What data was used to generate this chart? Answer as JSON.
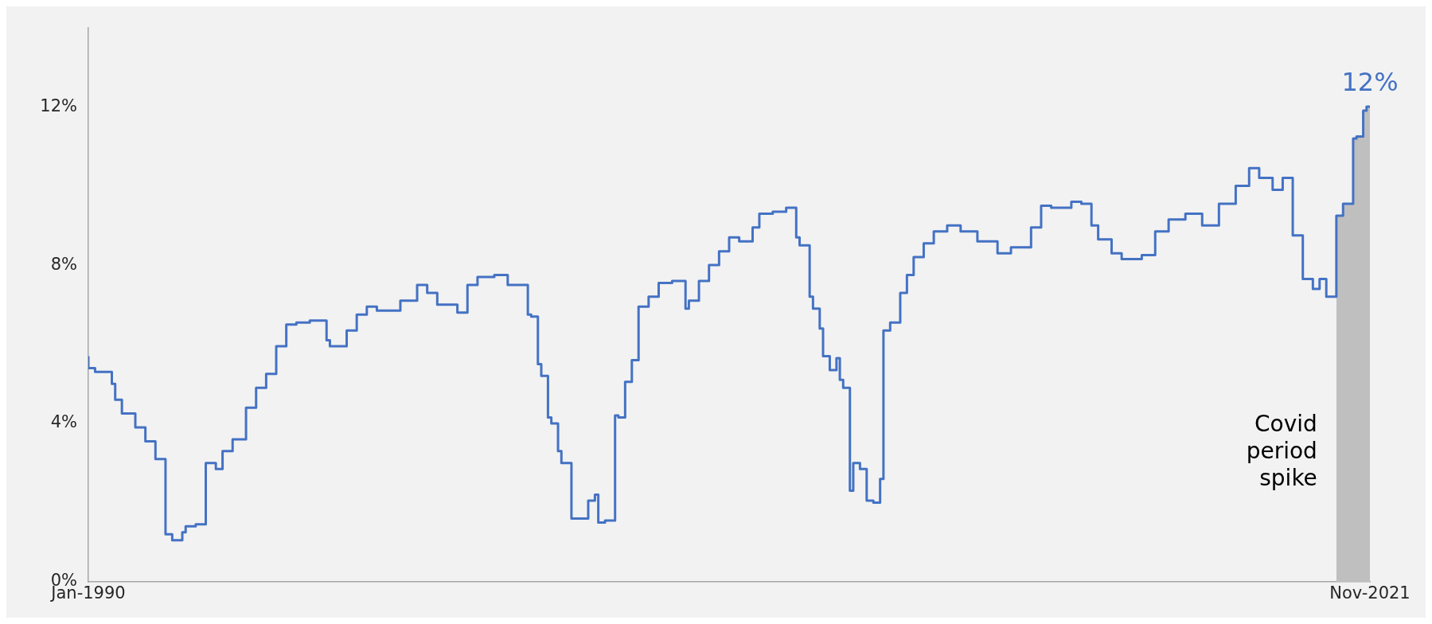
{
  "chart_data": {
    "type": "step",
    "marker": "none",
    "grid": false,
    "xlim": [
      "1990-01",
      "2021-11"
    ],
    "xticks": [
      {
        "value": "1990-01",
        "label": "Jan-1990"
      },
      {
        "value": "2021-11",
        "label": "Nov-2021"
      }
    ],
    "ylim": [
      0,
      14
    ],
    "yticks": [
      {
        "value": 0,
        "label": "0%"
      },
      {
        "value": 4,
        "label": "4%"
      },
      {
        "value": 8,
        "label": "8%"
      },
      {
        "value": 12,
        "label": "12%"
      }
    ],
    "series": [
      {
        "color": "#4472c4",
        "x": [
          "1990-01",
          "1990-03",
          "1990-05",
          "1990-08",
          "1990-09",
          "1990-11",
          "1991-03",
          "1991-06",
          "1991-09",
          "1991-12",
          "1992-02",
          "1992-05",
          "1992-06",
          "1992-09",
          "1992-12",
          "1993-03",
          "1993-05",
          "1993-08",
          "1993-12",
          "1994-03",
          "1994-06",
          "1994-09",
          "1994-12",
          "1995-03",
          "1995-07",
          "1995-12",
          "1996-01",
          "1996-06",
          "1996-09",
          "1996-12",
          "1997-03",
          "1997-10",
          "1998-03",
          "1998-06",
          "1998-09",
          "1999-03",
          "1999-06",
          "1999-09",
          "2000-02",
          "2000-06",
          "2000-12",
          "2001-01",
          "2001-03",
          "2001-04",
          "2001-06",
          "2001-07",
          "2001-09",
          "2001-10",
          "2002-01",
          "2002-03",
          "2002-06",
          "2002-08",
          "2002-09",
          "2002-11",
          "2003-02",
          "2003-03",
          "2003-05",
          "2003-07",
          "2003-09",
          "2003-12",
          "2004-03",
          "2004-07",
          "2004-11",
          "2004-12",
          "2005-03",
          "2005-06",
          "2005-09",
          "2005-12",
          "2006-03",
          "2006-07",
          "2006-09",
          "2007-01",
          "2007-05",
          "2007-08",
          "2007-09",
          "2007-12",
          "2008-01",
          "2008-03",
          "2008-04",
          "2008-06",
          "2008-08",
          "2008-09",
          "2008-10",
          "2008-12",
          "2009-01",
          "2009-03",
          "2009-05",
          "2009-07",
          "2009-09",
          "2009-10",
          "2009-12",
          "2010-03",
          "2010-05",
          "2010-07",
          "2010-10",
          "2011-01",
          "2011-05",
          "2011-09",
          "2012-02",
          "2012-08",
          "2012-12",
          "2013-06",
          "2013-09",
          "2013-12",
          "2014-06",
          "2014-09",
          "2014-12",
          "2015-02",
          "2015-06",
          "2015-09",
          "2016-03",
          "2016-07",
          "2016-11",
          "2017-04",
          "2017-09",
          "2018-02",
          "2018-07",
          "2018-11",
          "2019-02",
          "2019-06",
          "2019-09",
          "2019-12",
          "2020-03",
          "2020-06",
          "2020-08",
          "2020-10",
          "2021-01",
          "2021-03",
          "2021-06",
          "2021-07",
          "2021-09",
          "2021-10",
          "2021-11"
        ],
        "values": [
          5.7,
          5.4,
          5.3,
          5.3,
          5.0,
          4.6,
          4.25,
          3.9,
          3.55,
          3.1,
          1.2,
          1.05,
          1.25,
          1.4,
          1.45,
          3.0,
          2.85,
          3.3,
          3.6,
          4.4,
          4.9,
          5.25,
          5.95,
          6.5,
          6.55,
          6.6,
          6.1,
          5.95,
          6.35,
          6.75,
          6.95,
          6.85,
          7.1,
          7.5,
          7.3,
          7.0,
          6.8,
          7.5,
          7.7,
          7.75,
          7.5,
          6.75,
          6.7,
          5.5,
          5.2,
          4.15,
          4.0,
          3.3,
          3.0,
          1.6,
          1.6,
          2.05,
          2.2,
          1.5,
          1.55,
          4.2,
          4.15,
          5.05,
          5.6,
          6.95,
          7.2,
          7.55,
          7.6,
          6.9,
          7.1,
          7.6,
          8.0,
          8.35,
          8.7,
          8.6,
          8.95,
          9.3,
          9.35,
          9.45,
          8.7,
          8.5,
          7.2,
          6.9,
          6.4,
          5.7,
          5.35,
          5.65,
          5.1,
          4.9,
          2.3,
          3.0,
          2.85,
          2.05,
          2.0,
          2.6,
          6.35,
          6.55,
          7.3,
          7.75,
          8.2,
          8.55,
          8.85,
          9.0,
          8.85,
          8.6,
          8.3,
          8.45,
          8.95,
          9.5,
          9.45,
          9.6,
          9.55,
          9.0,
          8.65,
          8.3,
          8.15,
          8.25,
          8.85,
          9.15,
          9.3,
          9.0,
          9.55,
          10.0,
          10.45,
          10.2,
          9.9,
          10.2,
          8.75,
          7.65,
          7.4,
          7.65,
          7.2,
          9.25,
          9.55,
          11.2,
          11.25,
          11.9,
          12.0
        ]
      },
      {
        "type": "area",
        "color": "#bfbfbf",
        "x": [
          "2021-01",
          "2021-03",
          "2021-06",
          "2021-07",
          "2021-09",
          "2021-10",
          "2021-11"
        ],
        "values": [
          7.2,
          9.25,
          9.55,
          11.2,
          11.25,
          11.9,
          12.0
        ]
      }
    ],
    "annotations": [
      {
        "text": "12%",
        "x": "2021-11",
        "y": 12
      },
      {
        "text": "Covid period spike",
        "x": "2021-01",
        "y": 3.2
      }
    ]
  }
}
